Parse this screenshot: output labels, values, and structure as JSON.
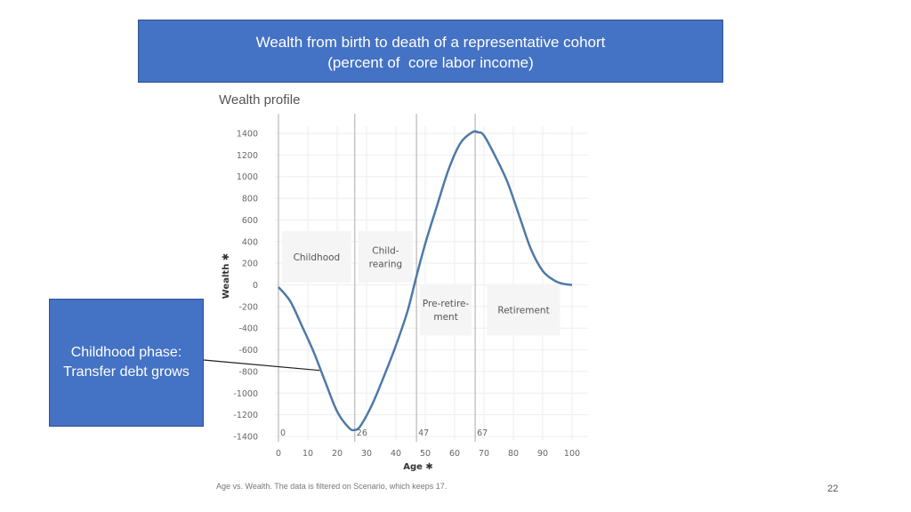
{
  "slide": {
    "title_line1": "Wealth from birth to death of a representative cohort",
    "title_line2": "(percent of  core labor income)",
    "chart_heading": "Wealth profile",
    "callout_line1": "Childhood phase:",
    "callout_line2": "Transfer debt grows",
    "footnote": "Age vs. Wealth. The data is filtered on Scenario, which keeps 17.",
    "page_number": "22"
  },
  "colors": {
    "title_box": "#4472c4",
    "line": "#4e79a7",
    "grid": "#eeeeee",
    "phase_box": "#f5f5f5",
    "vline": "#aaaaaa"
  },
  "chart_data": {
    "type": "line",
    "title": "Wealth profile",
    "xlabel": "Age",
    "ylabel": "Wealth",
    "xlim": [
      0,
      100
    ],
    "ylim": [
      -1400,
      1400
    ],
    "x_ticks": [
      0,
      10,
      20,
      30,
      40,
      50,
      60,
      70,
      80,
      90,
      100
    ],
    "y_ticks": [
      1400,
      1200,
      1000,
      800,
      600,
      400,
      200,
      0,
      -200,
      -400,
      -600,
      -800,
      -1000,
      -1200,
      -1400
    ],
    "grid": true,
    "vlines": [
      {
        "x": 0,
        "label": "0"
      },
      {
        "x": 26,
        "label": "26"
      },
      {
        "x": 47,
        "label": "47"
      },
      {
        "x": 67,
        "label": "67"
      }
    ],
    "phases": [
      {
        "label_lines": [
          "Childhood"
        ],
        "x_start": 0,
        "x_end": 26,
        "y_center": 260
      },
      {
        "label_lines": [
          "Child-",
          "rearing"
        ],
        "x_start": 26,
        "x_end": 47,
        "y_center": 260
      },
      {
        "label_lines": [
          "Pre-retire-",
          "ment"
        ],
        "x_start": 47,
        "x_end": 67,
        "y_center": -230
      },
      {
        "label_lines": [
          "Retirement"
        ],
        "x_start": 67,
        "x_end": 100,
        "y_center": -230
      }
    ],
    "series": [
      {
        "x": [
          0,
          4,
          8,
          12,
          16,
          20,
          24,
          26,
          28,
          32,
          36,
          40,
          44,
          47,
          50,
          54,
          58,
          62,
          66,
          68,
          70,
          74,
          78,
          82,
          86,
          90,
          94,
          97,
          100
        ],
        "y": [
          -20,
          -150,
          -380,
          -620,
          -900,
          -1170,
          -1320,
          -1340,
          -1300,
          -1100,
          -840,
          -560,
          -240,
          80,
          380,
          730,
          1070,
          1310,
          1410,
          1410,
          1380,
          1180,
          950,
          640,
          330,
          130,
          40,
          10,
          0
        ]
      }
    ],
    "callout_point": {
      "x": 14,
      "y": -790
    }
  }
}
